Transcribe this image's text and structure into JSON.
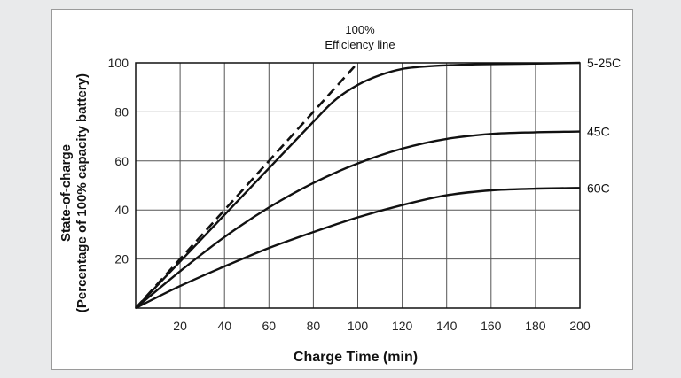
{
  "chart_data": {
    "type": "line",
    "xlabel": "Charge Time (min)",
    "ylabel_line1": "State-of-charge",
    "ylabel_line2": "(Percentage of 100% capacity battery)",
    "annotation_line1": "100%",
    "annotation_line2": "Efficiency line",
    "xlim": [
      0,
      200
    ],
    "ylim": [
      0,
      100
    ],
    "x_ticks": [
      20,
      40,
      60,
      80,
      100,
      120,
      140,
      160,
      180,
      200
    ],
    "y_ticks": [
      20,
      40,
      60,
      80,
      100
    ],
    "grid": true,
    "efficiency_line": {
      "style": "dashed",
      "x": [
        0,
        100
      ],
      "y": [
        0,
        100
      ]
    },
    "series": [
      {
        "name": "5-25C",
        "x": [
          0,
          20,
          40,
          60,
          80,
          90,
          100,
          110,
          120,
          130,
          140,
          150,
          160,
          180,
          200
        ],
        "y": [
          0,
          19,
          38,
          57,
          76,
          85,
          91,
          95,
          97.5,
          98.5,
          99,
          99.3,
          99.5,
          99.7,
          100
        ]
      },
      {
        "name": "45C",
        "x": [
          0,
          20,
          40,
          60,
          80,
          100,
          120,
          140,
          160,
          180,
          200
        ],
        "y": [
          0,
          15,
          29,
          41,
          51,
          59,
          65,
          69,
          71,
          71.7,
          72
        ]
      },
      {
        "name": "60C",
        "x": [
          0,
          20,
          40,
          60,
          80,
          100,
          120,
          140,
          160,
          180,
          200
        ],
        "y": [
          0,
          9,
          17,
          24.5,
          31,
          37,
          42,
          46,
          48,
          48.7,
          49
        ]
      }
    ]
  }
}
